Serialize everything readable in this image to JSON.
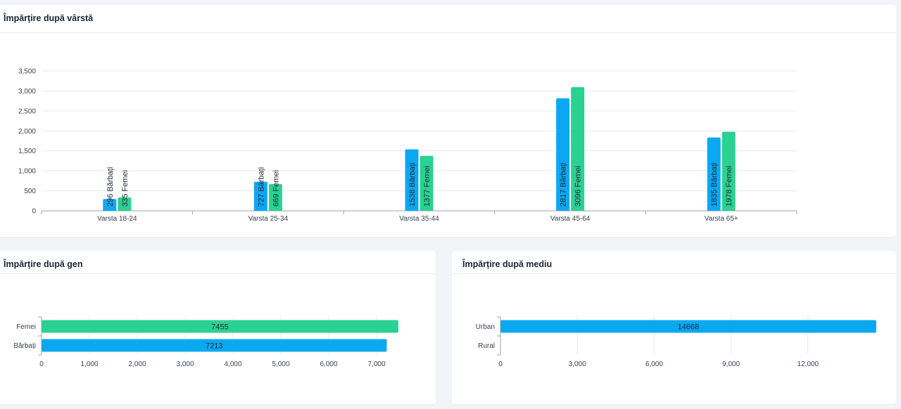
{
  "colors": {
    "men": "#0ba8f2",
    "women": "#2bd192",
    "urban": "#0ba8f2",
    "grid": "#e8e9ec",
    "axis": "#9ca3af"
  },
  "age_card": {
    "title": "Împărțire după vârstă"
  },
  "gender_card": {
    "title": "Împărțire după gen"
  },
  "env_card": {
    "title": "Împărțire după mediu"
  },
  "chart_data": [
    {
      "type": "bar",
      "title": "Împărțire după vârstă",
      "categories": [
        "Varsta 18-24",
        "Varsta 25-34",
        "Varsta 35-44",
        "Varsta 45-64",
        "Varsta 65+"
      ],
      "series": [
        {
          "name": "Bărbați",
          "values": [
            296,
            727,
            1538,
            2817,
            1835
          ],
          "labels": [
            "296 Bărbați",
            "727 Bărbați",
            "1538 Bărbați",
            "2817 Bărbați",
            "1835 Bărbați"
          ]
        },
        {
          "name": "Femei",
          "values": [
            335,
            669,
            1377,
            3096,
            1978
          ],
          "labels": [
            "335 Femei",
            "669 Femei",
            "1377 Femei",
            "3096 Femei",
            "1978 Femei"
          ]
        }
      ],
      "ylim": [
        0,
        3500
      ],
      "yticks": [
        0,
        500,
        1000,
        1500,
        2000,
        2500,
        3000,
        3500
      ],
      "ytick_labels": [
        "0",
        "500",
        "1,000",
        "1,500",
        "2,000",
        "2,500",
        "3,000",
        "3,500"
      ],
      "grid": true
    },
    {
      "type": "bar",
      "orientation": "horizontal",
      "title": "Împărțire după gen",
      "categories": [
        "Femei",
        "Bărbați"
      ],
      "values": [
        7455,
        7213
      ],
      "data_labels": [
        "7455",
        "7213"
      ],
      "xlim": [
        0,
        7500
      ],
      "xticks": [
        0,
        1000,
        2000,
        3000,
        4000,
        5000,
        6000,
        7000
      ],
      "xtick_labels": [
        "0",
        "1,000",
        "2,000",
        "3,000",
        "4,000",
        "5,000",
        "6,000",
        "7,000"
      ]
    },
    {
      "type": "bar",
      "orientation": "horizontal",
      "title": "Împărțire după mediu",
      "categories": [
        "Urban",
        "Rural"
      ],
      "values": [
        14668,
        0
      ],
      "data_labels": [
        "14668",
        ""
      ],
      "xlim": [
        0,
        14700
      ],
      "xticks": [
        0,
        3000,
        6000,
        9000,
        12000
      ],
      "xtick_labels": [
        "0",
        "3,000",
        "6,000",
        "9,000",
        "12,000"
      ]
    }
  ]
}
